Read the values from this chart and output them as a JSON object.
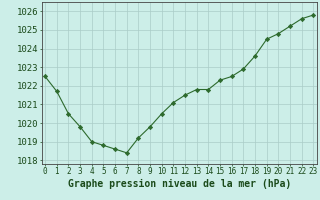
{
  "x": [
    0,
    1,
    2,
    3,
    4,
    5,
    6,
    7,
    8,
    9,
    10,
    11,
    12,
    13,
    14,
    15,
    16,
    17,
    18,
    19,
    20,
    21,
    22,
    23
  ],
  "y": [
    1022.5,
    1021.7,
    1020.5,
    1019.8,
    1019.0,
    1018.8,
    1018.6,
    1018.4,
    1019.2,
    1019.8,
    1020.5,
    1021.1,
    1021.5,
    1021.8,
    1021.8,
    1022.3,
    1022.5,
    1022.9,
    1023.6,
    1024.5,
    1024.8,
    1025.2,
    1025.6,
    1025.8
  ],
  "line_color": "#2d6a2d",
  "marker": "D",
  "marker_size": 2.2,
  "bg_color": "#cceee8",
  "grid_color": "#aaccc8",
  "xlabel": "Graphe pression niveau de la mer (hPa)",
  "xlabel_fontsize": 7,
  "ytick_fontsize": 6.5,
  "xtick_fontsize": 5.5,
  "yticks": [
    1018,
    1019,
    1020,
    1021,
    1022,
    1023,
    1024,
    1025,
    1026
  ],
  "xticks": [
    0,
    1,
    2,
    3,
    4,
    5,
    6,
    7,
    8,
    9,
    10,
    11,
    12,
    13,
    14,
    15,
    16,
    17,
    18,
    19,
    20,
    21,
    22,
    23
  ],
  "ylim": [
    1017.8,
    1026.5
  ],
  "xlim": [
    -0.3,
    23.3
  ]
}
